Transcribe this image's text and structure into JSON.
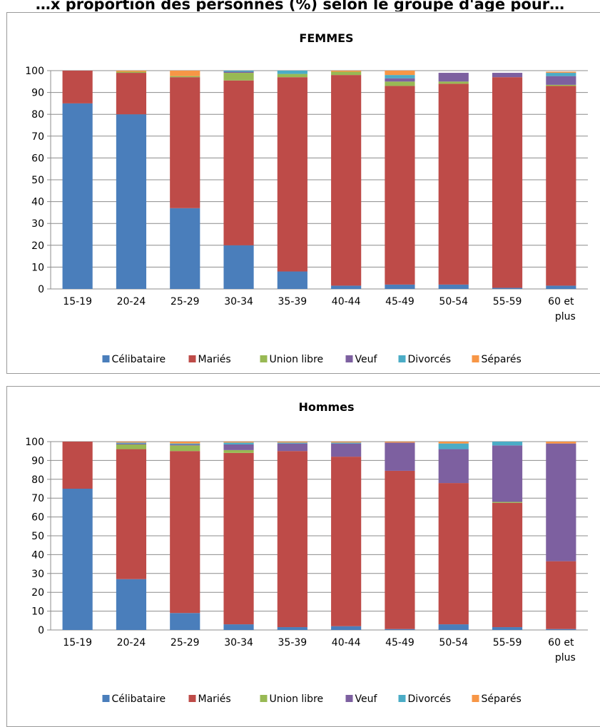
{
  "page": {
    "top_title": "…x proportion des personnes (%) selon le groupe d'âge pour…"
  },
  "chart_data": [
    {
      "type": "bar",
      "stacked": true,
      "title": "FEMMES",
      "xlabel": "",
      "ylabel": "",
      "ylim": [
        0,
        100
      ],
      "yticks": [
        0,
        10,
        20,
        30,
        40,
        50,
        60,
        70,
        80,
        90,
        100
      ],
      "grid": true,
      "legend_position": "bottom",
      "categories": [
        "15-19",
        "20-24",
        "25-29",
        "30-34",
        "35-39",
        "40-44",
        "45-49",
        "50-54",
        "55-59",
        "60 et plus"
      ],
      "series": [
        {
          "name": "Célibataire",
          "color": "#4a7ebb",
          "values": [
            85,
            80,
            37,
            20,
            8,
            1.5,
            2,
            2,
            0.5,
            1.5
          ]
        },
        {
          "name": "Mariés",
          "color": "#be4b48",
          "values": [
            15,
            19,
            60,
            75.5,
            89,
            96.5,
            91,
            92,
            96.5,
            91.5
          ]
        },
        {
          "name": "Union libre",
          "color": "#98b954",
          "values": [
            0,
            0.5,
            0.5,
            3.5,
            1.5,
            1.5,
            2,
            1,
            0,
            0.5
          ]
        },
        {
          "name": "Veuf",
          "color": "#7d60a0",
          "values": [
            0,
            0,
            0,
            0.5,
            0,
            0,
            1.5,
            4,
            2,
            4
          ]
        },
        {
          "name": "Divorcés",
          "color": "#4bacc6",
          "values": [
            0,
            0,
            0,
            0.5,
            1.5,
            0,
            1.5,
            0,
            0,
            1.5
          ]
        },
        {
          "name": "Séparés",
          "color": "#f79646",
          "values": [
            0,
            0.5,
            2.5,
            0,
            0,
            0.5,
            2,
            0,
            0,
            0.5
          ]
        }
      ]
    },
    {
      "type": "bar",
      "stacked": true,
      "title": "Hommes",
      "xlabel": "",
      "ylabel": "",
      "ylim": [
        0,
        100
      ],
      "yticks": [
        0,
        10,
        20,
        30,
        40,
        50,
        60,
        70,
        80,
        90,
        100
      ],
      "grid": true,
      "legend_position": "bottom",
      "categories": [
        "15-19",
        "20-24",
        "25-29",
        "30-34",
        "35-39",
        "40-44",
        "45-49",
        "50-54",
        "55-59",
        "60 et plus"
      ],
      "series": [
        {
          "name": "Célibataire",
          "color": "#4a7ebb",
          "values": [
            75,
            27,
            9,
            3,
            1.5,
            2,
            0.5,
            3,
            1.5,
            0.5
          ]
        },
        {
          "name": "Mariés",
          "color": "#be4b48",
          "values": [
            25,
            69,
            86,
            91,
            93.5,
            90,
            84,
            75,
            66,
            36
          ]
        },
        {
          "name": "Union libre",
          "color": "#98b954",
          "values": [
            0,
            2.5,
            3,
            1.5,
            0,
            0,
            0,
            0,
            0.5,
            0
          ]
        },
        {
          "name": "Veuf",
          "color": "#7d60a0",
          "values": [
            0,
            0.5,
            0.5,
            3,
            4,
            7,
            15,
            18,
            30,
            62.5
          ]
        },
        {
          "name": "Divorcés",
          "color": "#4bacc6",
          "values": [
            0,
            0.5,
            0.5,
            1,
            0.5,
            0.5,
            0,
            3,
            2,
            0
          ]
        },
        {
          "name": "Séparés",
          "color": "#f79646",
          "values": [
            0,
            0.5,
            1,
            0.5,
            0.5,
            0.5,
            0.5,
            1,
            0,
            1
          ]
        }
      ]
    }
  ]
}
